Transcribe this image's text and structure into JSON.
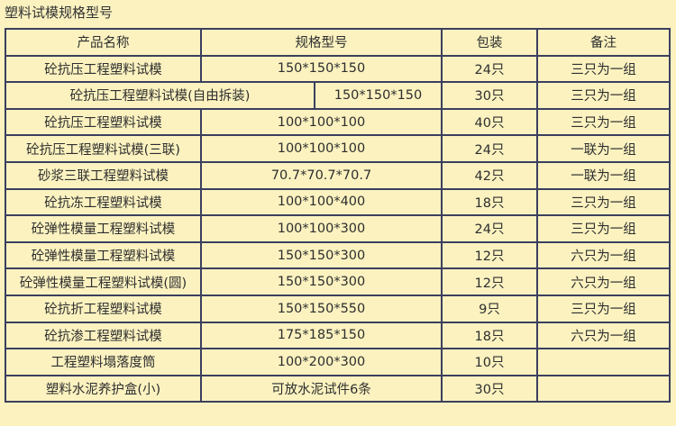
{
  "title": "塑料试模规格型号",
  "colors": {
    "background": "#fbf2c0",
    "border": "#3b3f5e",
    "text": "#2e2e2e"
  },
  "table": {
    "headers": [
      "产品名称",
      "规格型号",
      "包装",
      "备注"
    ],
    "rows": [
      {
        "name": "砼抗压工程塑料试模",
        "spec": "150*150*150",
        "pack": "24只",
        "note": "三只为一组"
      },
      {
        "name": "砼抗压工程塑料试模(自由拆装)",
        "spec": "150*150*150",
        "pack": "30只",
        "note": "三只为一组"
      },
      {
        "name": "砼抗压工程塑料试模",
        "spec": "100*100*100",
        "pack": "40只",
        "note": "三只为一组"
      },
      {
        "name": "砼抗压工程塑料试模(三联)",
        "spec": "100*100*100",
        "pack": "24只",
        "note": "一联为一组"
      },
      {
        "name": "砂浆三联工程塑料试模",
        "spec": "70.7*70.7*70.7",
        "pack": "42只",
        "note": "一联为一组"
      },
      {
        "name": "砼抗冻工程塑料试模",
        "spec": "100*100*400",
        "pack": "18只",
        "note": "三只为一组"
      },
      {
        "name": "砼弹性模量工程塑料试模",
        "spec": "100*100*300",
        "pack": "24只",
        "note": "三只为一组"
      },
      {
        "name": "砼弹性模量工程塑料试模",
        "spec": "150*150*300",
        "pack": "12只",
        "note": "六只为一组"
      },
      {
        "name": "砼弹性模量工程塑料试模(圆)",
        "spec": "150*150*300",
        "pack": "12只",
        "note": "六只为一组"
      },
      {
        "name": "砼抗折工程塑料试模",
        "spec": "150*150*550",
        "pack": "9只",
        "note": "三只为一组"
      },
      {
        "name": "砼抗渗工程塑料试模",
        "spec": "175*185*150",
        "pack": "18只",
        "note": "六只为一组"
      },
      {
        "name": "工程塑料塌落度筒",
        "spec": "100*200*300",
        "pack": "10只",
        "note": ""
      },
      {
        "name": "塑料水泥养护盒(小)",
        "spec": "可放水泥试件6条",
        "pack": "30只",
        "note": ""
      }
    ]
  }
}
